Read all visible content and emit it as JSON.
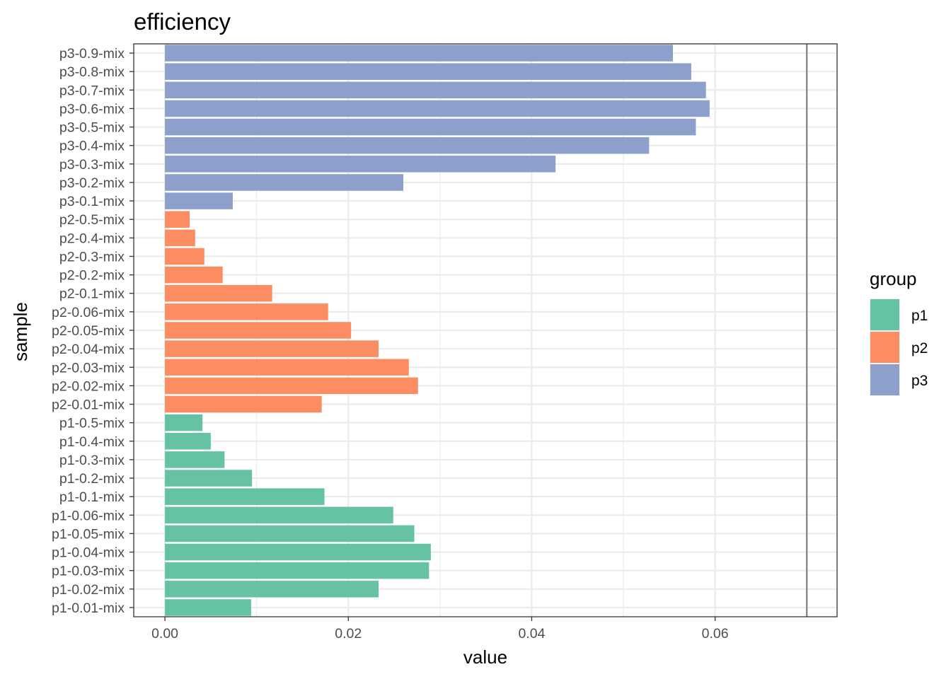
{
  "chart_data": {
    "type": "bar",
    "orientation": "horizontal",
    "title": "efficiency",
    "xlabel": "value",
    "ylabel": "sample",
    "xlim": [
      -0.0034,
      0.0733
    ],
    "x_ticks": [
      0.0,
      0.02,
      0.04,
      0.06
    ],
    "x_tick_labels": [
      "0.00",
      "0.02",
      "0.04",
      "0.06"
    ],
    "reference_line_x": 0.07,
    "grid": true,
    "legend": {
      "title": "group",
      "position": "right"
    },
    "colors": {
      "p1": "#66c2a5",
      "p2": "#fc8d62",
      "p3": "#8da0cb"
    },
    "groups": [
      "p1",
      "p2",
      "p3"
    ],
    "categories": [
      "p1-0.01-mix",
      "p1-0.02-mix",
      "p1-0.03-mix",
      "p1-0.04-mix",
      "p1-0.05-mix",
      "p1-0.06-mix",
      "p1-0.1-mix",
      "p1-0.2-mix",
      "p1-0.3-mix",
      "p1-0.4-mix",
      "p1-0.5-mix",
      "p2-0.01-mix",
      "p2-0.02-mix",
      "p2-0.03-mix",
      "p2-0.04-mix",
      "p2-0.05-mix",
      "p2-0.06-mix",
      "p2-0.1-mix",
      "p2-0.2-mix",
      "p2-0.3-mix",
      "p2-0.4-mix",
      "p2-0.5-mix",
      "p3-0.1-mix",
      "p3-0.2-mix",
      "p3-0.3-mix",
      "p3-0.4-mix",
      "p3-0.5-mix",
      "p3-0.6-mix",
      "p3-0.7-mix",
      "p3-0.8-mix",
      "p3-0.9-mix"
    ],
    "bar_groups": [
      "p1",
      "p1",
      "p1",
      "p1",
      "p1",
      "p1",
      "p1",
      "p1",
      "p1",
      "p1",
      "p1",
      "p2",
      "p2",
      "p2",
      "p2",
      "p2",
      "p2",
      "p2",
      "p2",
      "p2",
      "p2",
      "p2",
      "p3",
      "p3",
      "p3",
      "p3",
      "p3",
      "p3",
      "p3",
      "p3",
      "p3"
    ],
    "values": [
      0.0094,
      0.0233,
      0.0288,
      0.029,
      0.0272,
      0.0249,
      0.0174,
      0.0095,
      0.0065,
      0.005,
      0.0041,
      0.0171,
      0.0276,
      0.0266,
      0.0233,
      0.0203,
      0.0178,
      0.0117,
      0.0063,
      0.0043,
      0.0033,
      0.0027,
      0.0074,
      0.026,
      0.0426,
      0.0528,
      0.0579,
      0.0594,
      0.059,
      0.0574,
      0.0554
    ]
  }
}
